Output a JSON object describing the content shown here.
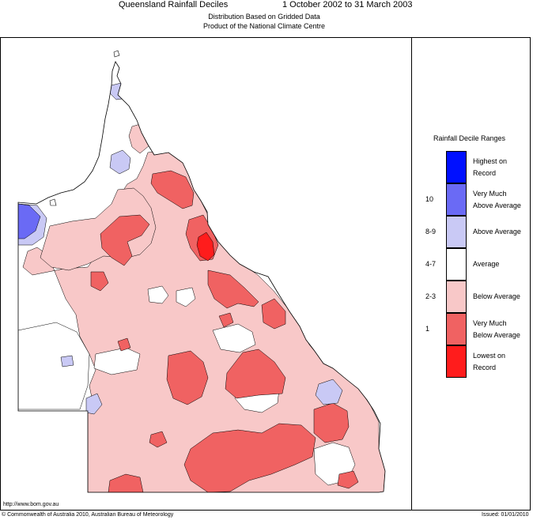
{
  "header": {
    "title": "Queensland Rainfall Deciles",
    "period": "1 October 2002 to 31 March 2003",
    "subtitle1": "Distribution Based on Gridded Data",
    "subtitle2": "Product of the National Climate Centre"
  },
  "legend": {
    "title": "Rainfall Decile Ranges",
    "items": [
      {
        "decile": "",
        "line1": "Highest on",
        "line2": "Record",
        "color": "#0010ff"
      },
      {
        "decile": "10",
        "line1": "Very Much",
        "line2": "Above Average",
        "color": "#6a6af5"
      },
      {
        "decile": "8-9",
        "line1": "Above Average",
        "line2": "",
        "color": "#c9c9f5"
      },
      {
        "decile": "4-7",
        "line1": "Average",
        "line2": "",
        "color": "#ffffff"
      },
      {
        "decile": "2-3",
        "line1": "Below Average",
        "line2": "",
        "color": "#f8c8c8"
      },
      {
        "decile": "1",
        "line1": "Very Much",
        "line2": "Below Average",
        "color": "#f06262"
      },
      {
        "decile": "",
        "line1": "Lowest on",
        "line2": "Record",
        "color": "#ff1c1c"
      }
    ]
  },
  "footer": {
    "url": "http://www.bom.gov.au",
    "copyright": "© Commonwealth of Australia 2010, Australian Bureau of Meteorology",
    "issued": "Issued: 01/01/2010"
  }
}
